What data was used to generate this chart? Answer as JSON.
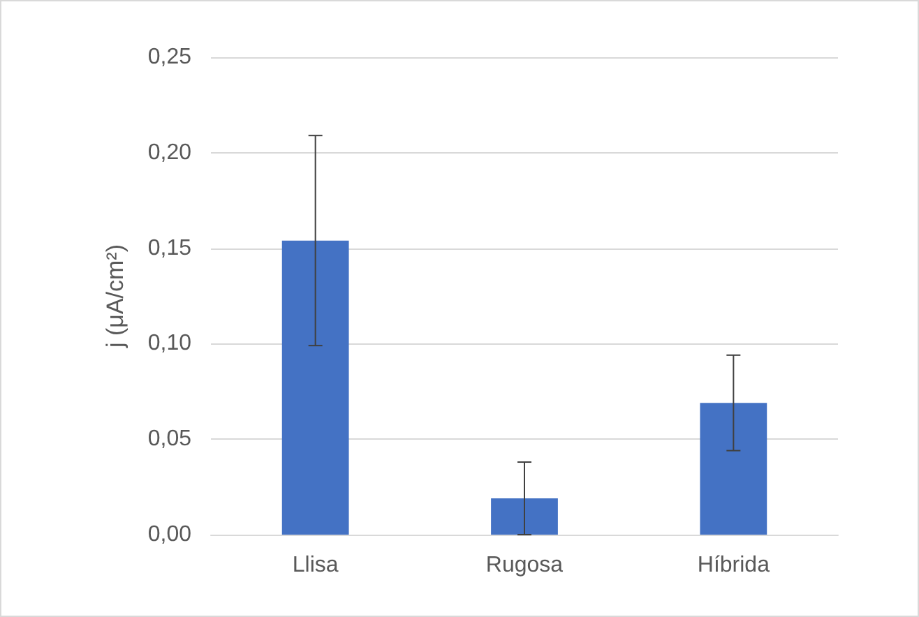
{
  "chart_data": {
    "type": "bar",
    "ylabel": "j (μA/cm²)",
    "categories": [
      "Llisa",
      "Rugosa",
      "Híbrida"
    ],
    "values": [
      0.154,
      0.019,
      0.069
    ],
    "errors": [
      0.055,
      0.019,
      0.025
    ],
    "color": "#4472c4",
    "ylim": [
      0,
      0.25
    ],
    "yticks": [
      {
        "value": 0,
        "label": "0,00"
      },
      {
        "value": 0.05,
        "label": "0,05"
      },
      {
        "value": 0.1,
        "label": "0,10"
      },
      {
        "value": 0.15,
        "label": "0,15"
      },
      {
        "value": 0.2,
        "label": "0,20"
      },
      {
        "value": 0.25,
        "label": "0,25"
      }
    ],
    "grid": "y"
  }
}
